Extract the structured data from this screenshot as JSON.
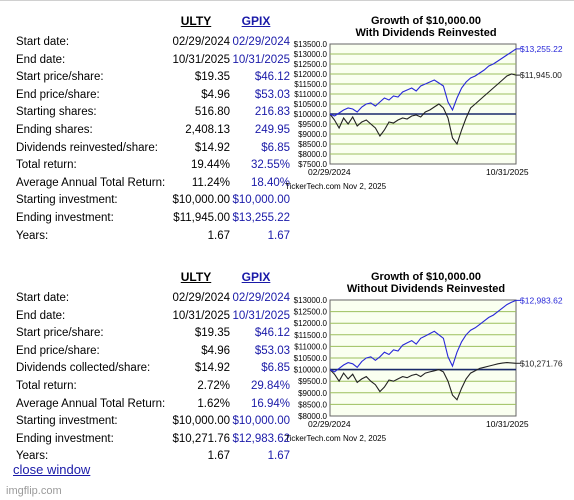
{
  "sections": [
    {
      "headers": [
        "ULTY",
        "GPIX"
      ],
      "rows": [
        {
          "label": "Start date:",
          "v1": "02/29/2024",
          "v2": "02/29/2024"
        },
        {
          "label": "End date:",
          "v1": "10/31/2025",
          "v2": "10/31/2025"
        },
        {
          "label": "Start price/share:",
          "v1": "$19.35",
          "v2": "$46.12"
        },
        {
          "label": "End price/share:",
          "v1": "$4.96",
          "v2": "$53.03"
        },
        {
          "label": "Starting shares:",
          "v1": "516.80",
          "v2": "216.83"
        },
        {
          "label": "Ending shares:",
          "v1": "2,408.13",
          "v2": "249.95"
        },
        {
          "label": "Dividends reinvested/share:",
          "v1": "$14.92",
          "v2": "$6.85"
        },
        {
          "label": "Total return:",
          "v1": "19.44%",
          "v2": "32.55%"
        },
        {
          "label": "Average Annual Total Return:",
          "v1": "11.24%",
          "v2": "18.40%"
        },
        {
          "label": "Starting investment:",
          "v1": "$10,000.00",
          "v2": "$10,000.00"
        },
        {
          "label": "Ending investment:",
          "v1": "$11,945.00",
          "v2": "$13,255.22"
        },
        {
          "label": "Years:",
          "v1": "1.67",
          "v2": "1.67"
        }
      ]
    },
    {
      "headers": [
        "ULTY",
        "GPIX"
      ],
      "rows": [
        {
          "label": "Start date:",
          "v1": "02/29/2024",
          "v2": "02/29/2024"
        },
        {
          "label": "End date:",
          "v1": "10/31/2025",
          "v2": "10/31/2025"
        },
        {
          "label": "Start price/share:",
          "v1": "$19.35",
          "v2": "$46.12"
        },
        {
          "label": "End price/share:",
          "v1": "$4.96",
          "v2": "$53.03"
        },
        {
          "label": "Dividends collected/share:",
          "v1": "$14.92",
          "v2": "$6.85"
        },
        {
          "label": "Total return:",
          "v1": "2.72%",
          "v2": "29.84%"
        },
        {
          "label": "Average Annual Total Return:",
          "v1": "1.62%",
          "v2": "16.94%"
        },
        {
          "label": "Starting investment:",
          "v1": "$10,000.00",
          "v2": "$10,000.00"
        },
        {
          "label": "Ending investment:",
          "v1": "$10,271.76",
          "v2": "$12,983.62"
        },
        {
          "label": "Years:",
          "v1": "1.67",
          "v2": "1.67"
        }
      ]
    }
  ],
  "close_link": "close window",
  "watermark": "imgflip.com",
  "colors": {
    "gpix": "#2828d8",
    "ulty": "#222222",
    "grid": "#9cbf5e",
    "plot_bg": "#fafff0",
    "baseline": "#1a2a6a"
  },
  "chart_data": [
    {
      "type": "line",
      "title": "Growth of $10,000.00",
      "subtitle": "With Dividends Reinvested",
      "x_start_label": "02/29/2024",
      "x_end_label": "10/31/2025",
      "ylim": [
        7500,
        13500
      ],
      "y_ticks": [
        "$13500.0",
        "$13000.0",
        "$12500.0",
        "$12000.0",
        "$11500.0",
        "$11000.0",
        "$10500.0",
        "$10000.0",
        "$9500.0",
        "$9000.0",
        "$8500.0",
        "$8000.0",
        "$7500.0"
      ],
      "baseline": 10000,
      "credit": "TickerTech.com  Nov 2, 2025",
      "series": [
        {
          "name": "GPIX",
          "end_label": "$13,255.22",
          "values": [
            10000,
            9900,
            10050,
            10200,
            10300,
            10250,
            10100,
            10350,
            10500,
            10550,
            10400,
            10600,
            10800,
            10700,
            10900,
            10850,
            11100,
            11200,
            11300,
            11150,
            11400,
            11500,
            11600,
            11700,
            11550,
            11400,
            10600,
            10200,
            10800,
            11300,
            11600,
            11800,
            11900,
            12050,
            12200,
            12400,
            12500,
            12650,
            12800,
            12950,
            13100,
            13255
          ]
        },
        {
          "name": "ULTY",
          "end_label": "$11,945.00",
          "values": [
            10000,
            9700,
            9300,
            9800,
            9500,
            9850,
            9400,
            9600,
            9700,
            9500,
            9300,
            8900,
            9200,
            9600,
            9550,
            9700,
            9800,
            9750,
            9900,
            9950,
            9850,
            10100,
            10200,
            10350,
            10500,
            10300,
            9800,
            8800,
            8500,
            9200,
            9800,
            10300,
            10500,
            10700,
            10900,
            11100,
            11300,
            11500,
            11700,
            11900,
            12000,
            11945
          ]
        }
      ]
    },
    {
      "type": "line",
      "title": "Growth of $10,000.00",
      "subtitle": "Without Dividends Reinvested",
      "x_start_label": "02/29/2024",
      "x_end_label": "10/31/2025",
      "ylim": [
        8000,
        13000
      ],
      "y_ticks": [
        "$13000.0",
        "$12500.0",
        "$12000.0",
        "$11500.0",
        "$11000.0",
        "$10500.0",
        "$10000.0",
        "$9500.0",
        "$9000.0",
        "$8500.0",
        "$8000.0"
      ],
      "baseline": 10000,
      "credit": "TickerTech.com  Nov 2, 2025",
      "series": [
        {
          "name": "GPIX",
          "end_label": "$12,983.62",
          "values": [
            10000,
            9900,
            10050,
            10200,
            10300,
            10250,
            10100,
            10350,
            10500,
            10550,
            10400,
            10550,
            10750,
            10650,
            10850,
            10800,
            11050,
            11150,
            11250,
            11100,
            11350,
            11450,
            11550,
            11650,
            11500,
            11350,
            10550,
            10150,
            10750,
            11200,
            11500,
            11700,
            11800,
            11950,
            12100,
            12250,
            12350,
            12500,
            12650,
            12800,
            12900,
            12984
          ]
        },
        {
          "name": "ULTY",
          "end_label": "$10,271.76",
          "values": [
            10000,
            9800,
            9500,
            9850,
            9600,
            9800,
            9450,
            9600,
            9700,
            9500,
            9350,
            9050,
            9250,
            9550,
            9500,
            9600,
            9700,
            9650,
            9750,
            9800,
            9700,
            9850,
            9900,
            9950,
            10000,
            9900,
            9500,
            8900,
            8700,
            9200,
            9600,
            9850,
            9950,
            10050,
            10100,
            10150,
            10200,
            10250,
            10280,
            10300,
            10290,
            10272
          ]
        }
      ]
    }
  ]
}
